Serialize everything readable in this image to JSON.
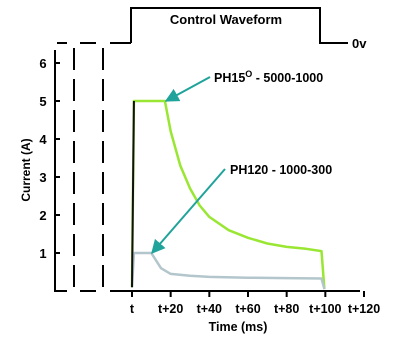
{
  "chart_data": {
    "type": "line",
    "title": "",
    "xlabel": "Time (ms)",
    "ylabel": "Current (A)",
    "x_tick_labels": [
      "t",
      "t+20",
      "t+40",
      "t+60",
      "t+80",
      "t+100",
      "t+120"
    ],
    "x_ticks": [
      0,
      20,
      40,
      60,
      80,
      100,
      120
    ],
    "y_ticks": [
      1,
      2,
      3,
      4,
      5,
      6
    ],
    "xlim": [
      0,
      125
    ],
    "ylim": [
      0,
      6.5
    ],
    "series": [
      {
        "name": "PH15° - 5000-1000",
        "color": "#99e633",
        "x": [
          0,
          1,
          17,
          20,
          25,
          30,
          35,
          40,
          50,
          60,
          70,
          80,
          90,
          98,
          99.5
        ],
        "y": [
          0.1,
          5.0,
          5.0,
          4.2,
          3.3,
          2.7,
          2.25,
          1.95,
          1.6,
          1.4,
          1.25,
          1.16,
          1.11,
          1.05,
          0.05
        ]
      },
      {
        "name": "PH120 - 1000-300",
        "color": "#b3c6cc",
        "x": [
          0,
          1,
          10,
          15,
          20,
          30,
          40,
          60,
          80,
          98,
          99.5
        ],
        "y": [
          0.1,
          1.0,
          1.0,
          0.6,
          0.45,
          0.4,
          0.37,
          0.35,
          0.34,
          0.33,
          0.05
        ]
      }
    ],
    "annotations": [
      {
        "label": "PH15° - 5000-1000",
        "points_to": {
          "x": 18,
          "y": 5.0
        }
      },
      {
        "label": "PH120 - 1000-300",
        "points_to": {
          "x": 10,
          "y": 1.0
        }
      }
    ],
    "control_waveform": {
      "title": "Control Waveform",
      "end_label": "0v"
    },
    "grid": false,
    "legend": "none"
  }
}
